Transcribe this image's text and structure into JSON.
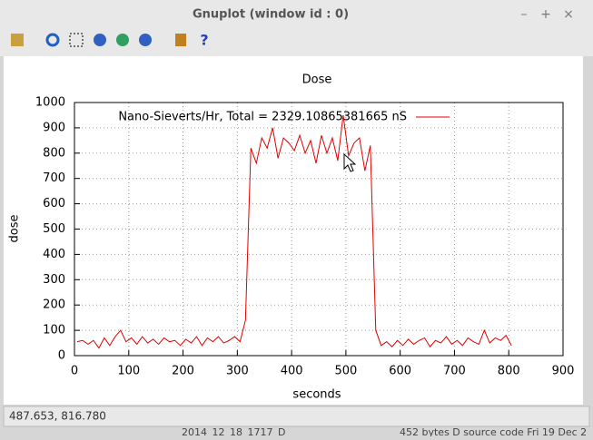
{
  "window": {
    "title": "Gnuplot (window id : 0)",
    "status": "487.653,  816.780",
    "behind_left": "2014_12_18_1717_D",
    "behind_right": "452 bytes  D source code  Fri 19 Dec 2"
  },
  "chart_data": {
    "type": "line",
    "title": "Dose",
    "x_label": "seconds",
    "y_label": "dose",
    "x": [
      5,
      15,
      25,
      35,
      45,
      55,
      65,
      75,
      85,
      95,
      105,
      115,
      125,
      135,
      145,
      155,
      165,
      175,
      185,
      195,
      205,
      215,
      225,
      235,
      245,
      255,
      265,
      275,
      285,
      295,
      305,
      315,
      325,
      335,
      345,
      355,
      365,
      375,
      385,
      395,
      405,
      415,
      425,
      435,
      445,
      455,
      465,
      475,
      485,
      495,
      505,
      515,
      525,
      535,
      545,
      555,
      565,
      575,
      585,
      595,
      605,
      615,
      625,
      635,
      645,
      655,
      665,
      675,
      685,
      695,
      705,
      715,
      725,
      735,
      745,
      755,
      765,
      775,
      785,
      795,
      805
    ],
    "series": [
      {
        "name": "Nano-Sieverts/Hr, Total = 2329.10865381665 nS",
        "color": "#e00000",
        "values": [
          55,
          60,
          45,
          60,
          30,
          70,
          40,
          75,
          100,
          55,
          70,
          45,
          75,
          50,
          65,
          45,
          70,
          55,
          60,
          40,
          65,
          50,
          75,
          40,
          70,
          55,
          75,
          50,
          60,
          75,
          55,
          140,
          820,
          760,
          860,
          820,
          900,
          780,
          860,
          840,
          810,
          870,
          800,
          850,
          760,
          870,
          800,
          860,
          770,
          950,
          790,
          840,
          860,
          730,
          830,
          100,
          40,
          55,
          35,
          60,
          40,
          65,
          45,
          60,
          70,
          35,
          60,
          50,
          75,
          45,
          60,
          40,
          70,
          55,
          45,
          100,
          50,
          70,
          60,
          80,
          40
        ]
      }
    ],
    "xlim": [
      0,
      900
    ],
    "xticks": [
      0,
      100,
      200,
      300,
      400,
      500,
      600,
      700,
      800,
      900
    ],
    "ylim": [
      0,
      1000
    ],
    "yticks": [
      0,
      100,
      200,
      300,
      400,
      500,
      600,
      700,
      800,
      900,
      1000
    ],
    "grid": true
  }
}
